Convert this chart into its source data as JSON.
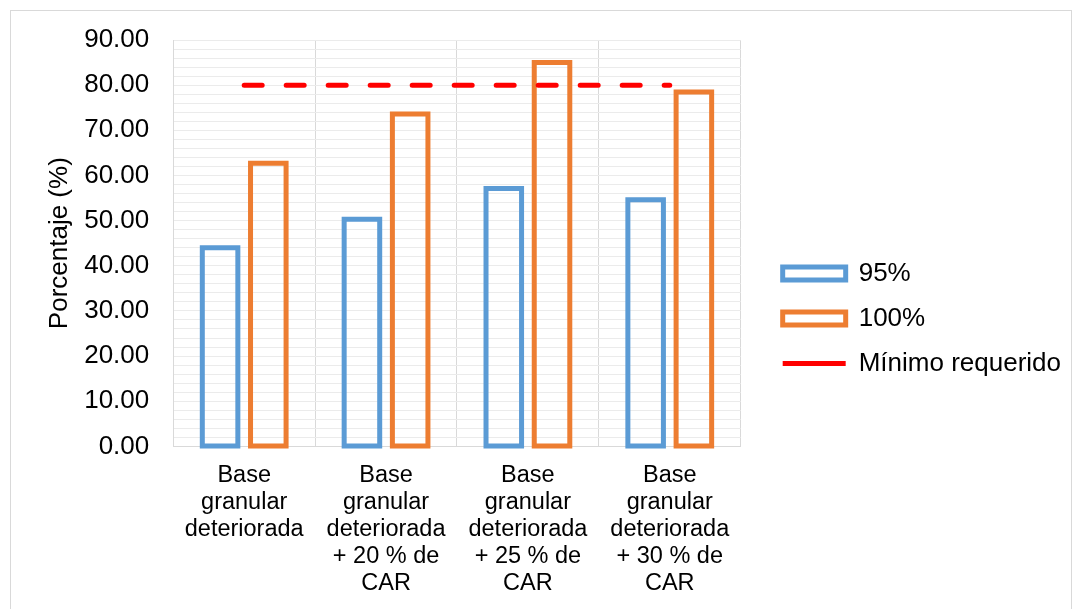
{
  "chart_data": {
    "type": "bar",
    "ylabel": "Porcentaje (%)",
    "categories": [
      "Base granular deteriorada",
      "Base granular deteriorada + 20 % de CAR",
      "Base granular deteriorada + 25 % de CAR",
      "Base granular deteriorada + 30 % de CAR"
    ],
    "series": [
      {
        "name": "95%",
        "color": "#5b9bd5",
        "values": [
          44.0,
          50.3,
          57.1,
          54.6
        ]
      },
      {
        "name": "100%",
        "color": "#ed7d31",
        "values": [
          62.7,
          73.6,
          85.0,
          78.5
        ]
      },
      {
        "name": "Mínimo requerido",
        "type": "line",
        "color": "#ff0000",
        "values": [
          80,
          80,
          80,
          80
        ]
      }
    ],
    "ylim": [
      0,
      90
    ],
    "yticks": [
      {
        "value": 0,
        "label": "0.00"
      },
      {
        "value": 2,
        "label": null
      },
      {
        "value": 4,
        "label": null
      },
      {
        "value": 6,
        "label": null
      },
      {
        "value": 8,
        "label": null
      },
      {
        "value": 10,
        "label": "10.00"
      },
      {
        "value": 12,
        "label": null
      },
      {
        "value": 14,
        "label": null
      },
      {
        "value": 16,
        "label": null
      },
      {
        "value": 18,
        "label": null
      },
      {
        "value": 20,
        "label": "20.00"
      },
      {
        "value": 22,
        "label": null
      },
      {
        "value": 24,
        "label": null
      },
      {
        "value": 26,
        "label": null
      },
      {
        "value": 28,
        "label": null
      },
      {
        "value": 30,
        "label": "30.00"
      },
      {
        "value": 32,
        "label": null
      },
      {
        "value": 34,
        "label": null
      },
      {
        "value": 36,
        "label": null
      },
      {
        "value": 38,
        "label": null
      },
      {
        "value": 40,
        "label": "40.00"
      },
      {
        "value": 42,
        "label": null
      },
      {
        "value": 44,
        "label": null
      },
      {
        "value": 46,
        "label": null
      },
      {
        "value": 48,
        "label": null
      },
      {
        "value": 50,
        "label": "50.00"
      },
      {
        "value": 52,
        "label": null
      },
      {
        "value": 54,
        "label": null
      },
      {
        "value": 56,
        "label": null
      },
      {
        "value": 58,
        "label": null
      },
      {
        "value": 60,
        "label": "60.00"
      },
      {
        "value": 62,
        "label": null
      },
      {
        "value": 64,
        "label": null
      },
      {
        "value": 66,
        "label": null
      },
      {
        "value": 68,
        "label": null
      },
      {
        "value": 70,
        "label": "70.00"
      },
      {
        "value": 72,
        "label": null
      },
      {
        "value": 74,
        "label": null
      },
      {
        "value": 76,
        "label": null
      },
      {
        "value": 78,
        "label": null
      },
      {
        "value": 80,
        "label": "80.00"
      },
      {
        "value": 82,
        "label": null
      },
      {
        "value": 84,
        "label": null
      },
      {
        "value": 86,
        "label": null
      },
      {
        "value": 88,
        "label": null
      },
      {
        "value": 90,
        "label": "90.00"
      }
    ],
    "grid": true,
    "legend": "right",
    "marker": "none",
    "line_style": "dashed"
  }
}
